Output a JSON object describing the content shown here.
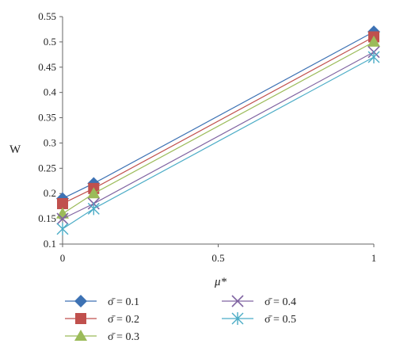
{
  "chart_data": {
    "type": "line",
    "title": "",
    "xlabel": "μ*",
    "ylabel": "W",
    "xlim": [
      0,
      1
    ],
    "ylim": [
      0.1,
      0.55
    ],
    "xticks": [
      "0",
      "0.5",
      "1"
    ],
    "yticks": [
      "0.1",
      "0.15",
      "0.2",
      "0.25",
      "0.3",
      "0.35",
      "0.4",
      "0.45",
      "0.5",
      "0.55"
    ],
    "x": [
      0,
      0.1,
      1
    ],
    "grid": false,
    "legend_position": "bottom",
    "series": [
      {
        "name": "σ̄ = 0.1",
        "values": [
          0.19,
          0.22,
          0.52
        ],
        "color": "#3d72b4",
        "marker": "diamond"
      },
      {
        "name": "σ̄ = 0.2",
        "values": [
          0.18,
          0.21,
          0.51
        ],
        "color": "#c0504d",
        "marker": "square"
      },
      {
        "name": "σ̄ = 0.3",
        "values": [
          0.16,
          0.2,
          0.5
        ],
        "color": "#9bbb59",
        "marker": "triangle"
      },
      {
        "name": "σ̄ = 0.4",
        "values": [
          0.15,
          0.18,
          0.48
        ],
        "color": "#8064a2",
        "marker": "x"
      },
      {
        "name": "σ̄ = 0.5",
        "values": [
          0.13,
          0.17,
          0.47
        ],
        "color": "#4bacc6",
        "marker": "star"
      }
    ]
  }
}
